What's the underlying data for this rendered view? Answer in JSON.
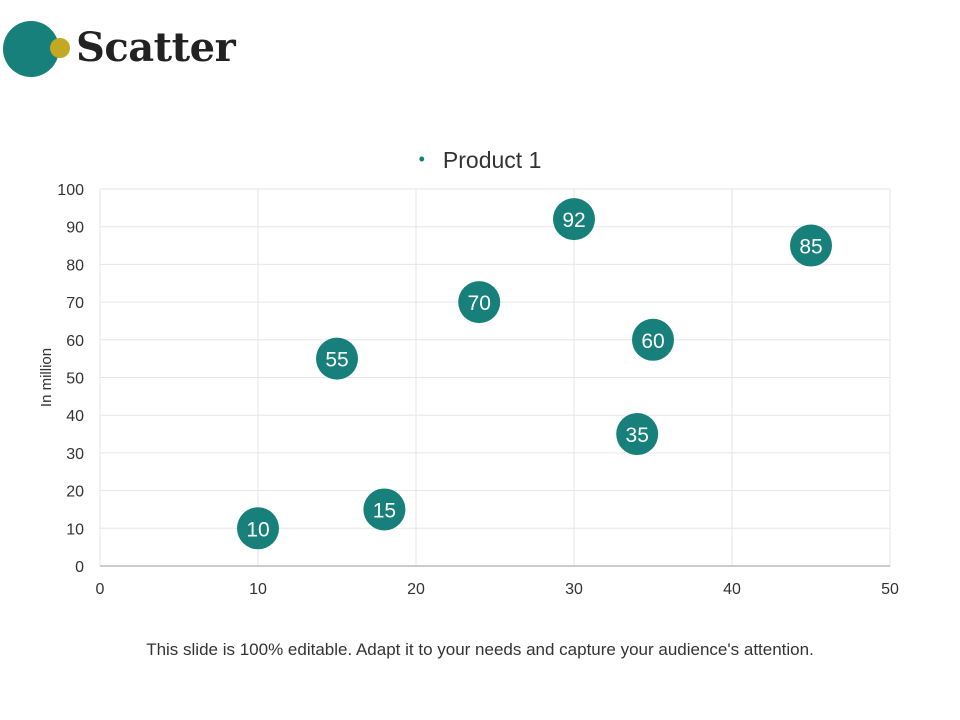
{
  "slide": {
    "title": "Scatter",
    "footer": "This slide is 100% editable. Adapt it to your needs and capture your audience's attention."
  },
  "colors": {
    "accent": "#17807a",
    "accent_secondary": "#c3a821",
    "title_text": "#222222",
    "body_text": "#333333",
    "grid": "#e6e6e6",
    "axis": "#999999"
  },
  "chart_data": {
    "type": "scatter",
    "title": "",
    "legend": {
      "position": "top",
      "entries": [
        "Product 1"
      ]
    },
    "xlabel": "",
    "ylabel": "In million",
    "xlim": [
      0,
      50
    ],
    "ylim": [
      0,
      100
    ],
    "x_ticks": [
      0,
      10,
      20,
      30,
      40,
      50
    ],
    "y_ticks": [
      0,
      10,
      20,
      30,
      40,
      50,
      60,
      70,
      80,
      90,
      100
    ],
    "grid": true,
    "series": [
      {
        "name": "Product 1",
        "color": "#17807a",
        "points": [
          {
            "x": 10,
            "y": 10,
            "label": "10"
          },
          {
            "x": 18,
            "y": 15,
            "label": "15"
          },
          {
            "x": 15,
            "y": 55,
            "label": "55"
          },
          {
            "x": 24,
            "y": 70,
            "label": "70"
          },
          {
            "x": 30,
            "y": 92,
            "label": "92"
          },
          {
            "x": 35,
            "y": 60,
            "label": "60"
          },
          {
            "x": 34,
            "y": 35,
            "label": "35"
          },
          {
            "x": 45,
            "y": 85,
            "label": "85"
          }
        ]
      }
    ]
  }
}
